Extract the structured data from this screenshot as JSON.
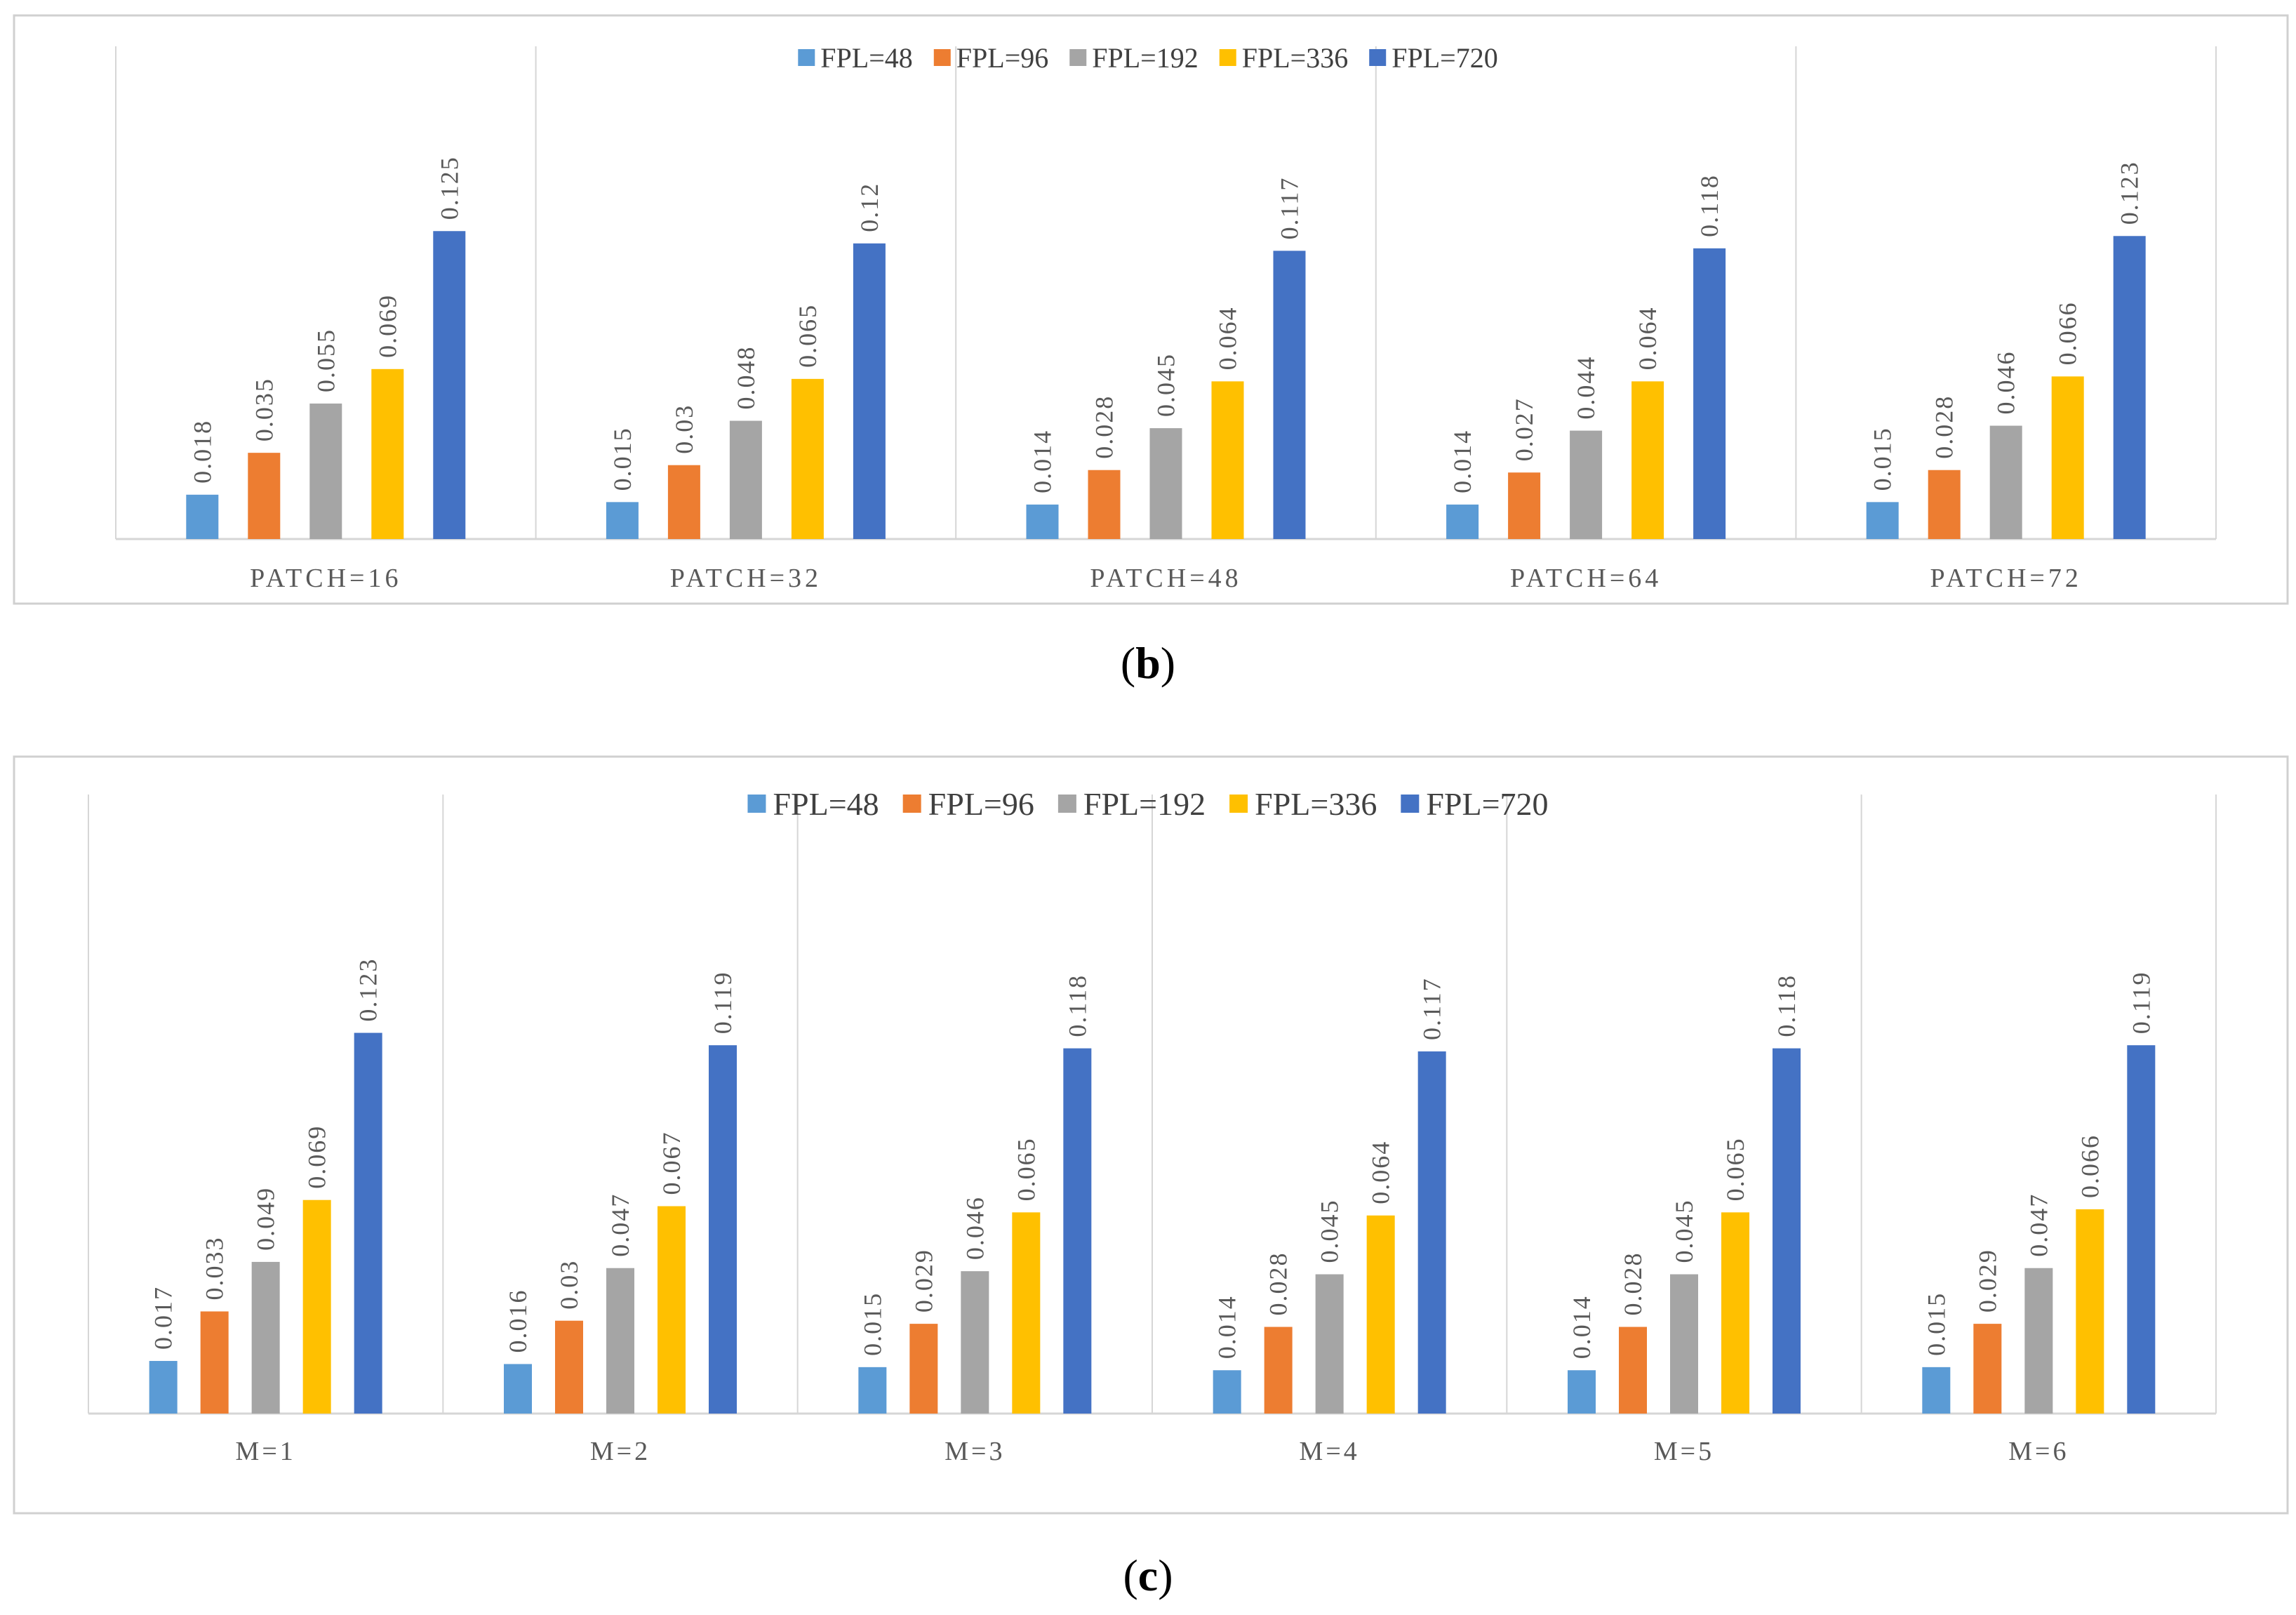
{
  "colors": {
    "FPL=48": "#5B9BD5",
    "FPL=96": "#ED7D31",
    "FPL=192": "#A5A5A5",
    "FPL=336": "#FFC000",
    "FPL=720": "#4472C4"
  },
  "chart_data": [
    {
      "type": "bar",
      "panel_label": "(b)",
      "panel_letter": "b",
      "categories": [
        "PATCH=16",
        "PATCH=32",
        "PATCH=48",
        "PATCH=64",
        "PATCH=72"
      ],
      "series": [
        {
          "name": "FPL=48",
          "values": [
            0.018,
            0.015,
            0.014,
            0.014,
            0.015
          ]
        },
        {
          "name": "FPL=96",
          "values": [
            0.035,
            0.03,
            0.028,
            0.027,
            0.028
          ]
        },
        {
          "name": "FPL=192",
          "values": [
            0.055,
            0.048,
            0.045,
            0.044,
            0.046
          ]
        },
        {
          "name": "FPL=336",
          "values": [
            0.069,
            0.065,
            0.064,
            0.064,
            0.066
          ]
        },
        {
          "name": "FPL=720",
          "values": [
            0.125,
            0.12,
            0.117,
            0.118,
            0.123
          ]
        }
      ],
      "value_labels": [
        [
          "0.018",
          "0.015",
          "0.014",
          "0.014",
          "0.015"
        ],
        [
          "0.035",
          "0.03",
          "0.028",
          "0.027",
          "0.028"
        ],
        [
          "0.055",
          "0.048",
          "0.045",
          "0.044",
          "0.046"
        ],
        [
          "0.069",
          "0.065",
          "0.064",
          "0.064",
          "0.066"
        ],
        [
          "0.125",
          "0.12",
          "0.117",
          "0.118",
          "0.123"
        ]
      ],
      "legend_position": "top-center",
      "ylim": [
        0,
        0.2
      ],
      "grid": "vertical category separators"
    },
    {
      "type": "bar",
      "panel_label": "(c)",
      "panel_letter": "c",
      "categories": [
        "M=1",
        "M=2",
        "M=3",
        "M=4",
        "M=5",
        "M=6"
      ],
      "series": [
        {
          "name": "FPL=48",
          "values": [
            0.017,
            0.016,
            0.015,
            0.014,
            0.014,
            0.015
          ]
        },
        {
          "name": "FPL=96",
          "values": [
            0.033,
            0.03,
            0.029,
            0.028,
            0.028,
            0.029
          ]
        },
        {
          "name": "FPL=192",
          "values": [
            0.049,
            0.047,
            0.046,
            0.045,
            0.045,
            0.047
          ]
        },
        {
          "name": "FPL=336",
          "values": [
            0.069,
            0.067,
            0.065,
            0.064,
            0.065,
            0.066
          ]
        },
        {
          "name": "FPL=720",
          "values": [
            0.123,
            0.119,
            0.118,
            0.117,
            0.118,
            0.119
          ]
        }
      ],
      "value_labels": [
        [
          "0.017",
          "0.016",
          "0.015",
          "0.014",
          "0.014",
          "0.015"
        ],
        [
          "0.033",
          "0.03",
          "0.029",
          "0.028",
          "0.028",
          "0.029"
        ],
        [
          "0.049",
          "0.047",
          "0.046",
          "0.045",
          "0.045",
          "0.047"
        ],
        [
          "0.069",
          "0.067",
          "0.065",
          "0.064",
          "0.065",
          "0.066"
        ],
        [
          "0.123",
          "0.119",
          "0.118",
          "0.117",
          "0.118",
          "0.119"
        ]
      ],
      "legend_position": "top-center",
      "ylim": [
        0,
        0.2
      ],
      "grid": "vertical category separators"
    }
  ]
}
